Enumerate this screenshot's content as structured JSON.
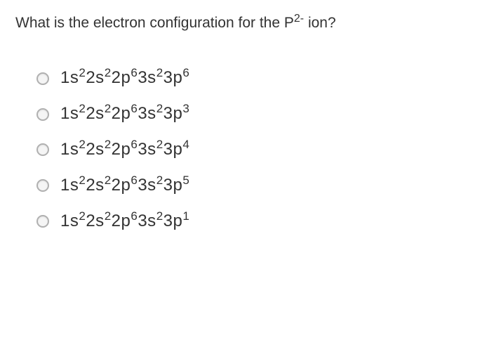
{
  "question": {
    "prefix": "What is the electron configuration for the P",
    "charge": "2-",
    "suffix": " ion?",
    "font_size": 21,
    "color": "#333333"
  },
  "options": [
    {
      "base": "1s²2s²2p⁶3s²3p⁶",
      "segments": [
        "1s",
        "2",
        "2s",
        "2",
        "2p",
        "6",
        "3s",
        "2",
        "3p",
        "6"
      ]
    },
    {
      "base": "1s²2s²2p⁶3s²3p³",
      "segments": [
        "1s",
        "2",
        "2s",
        "2",
        "2p",
        "6",
        "3s",
        "2",
        "3p",
        "3"
      ]
    },
    {
      "base": "1s²2s²2p⁶3s²3p⁴",
      "segments": [
        "1s",
        "2",
        "2s",
        "2",
        "2p",
        "6",
        "3s",
        "2",
        "3p",
        "4"
      ]
    },
    {
      "base": "1s²2s²2p⁶3s²3p⁵",
      "segments": [
        "1s",
        "2",
        "2s",
        "2",
        "2p",
        "6",
        "3s",
        "2",
        "3p",
        "5"
      ]
    },
    {
      "base": "1s²2s²2p⁶3s²3p¹",
      "segments": [
        "1s",
        "2",
        "2s",
        "2",
        "2p",
        "6",
        "3s",
        "2",
        "3p",
        "1"
      ]
    }
  ],
  "styling": {
    "background_color": "#ffffff",
    "text_color": "#333333",
    "radio_border_color": "#b0b0b0",
    "radio_fill": "#f5f5f5",
    "config_font_size": 24,
    "sup_font_size": 17,
    "option_gap": 22,
    "option_indent": 30
  }
}
